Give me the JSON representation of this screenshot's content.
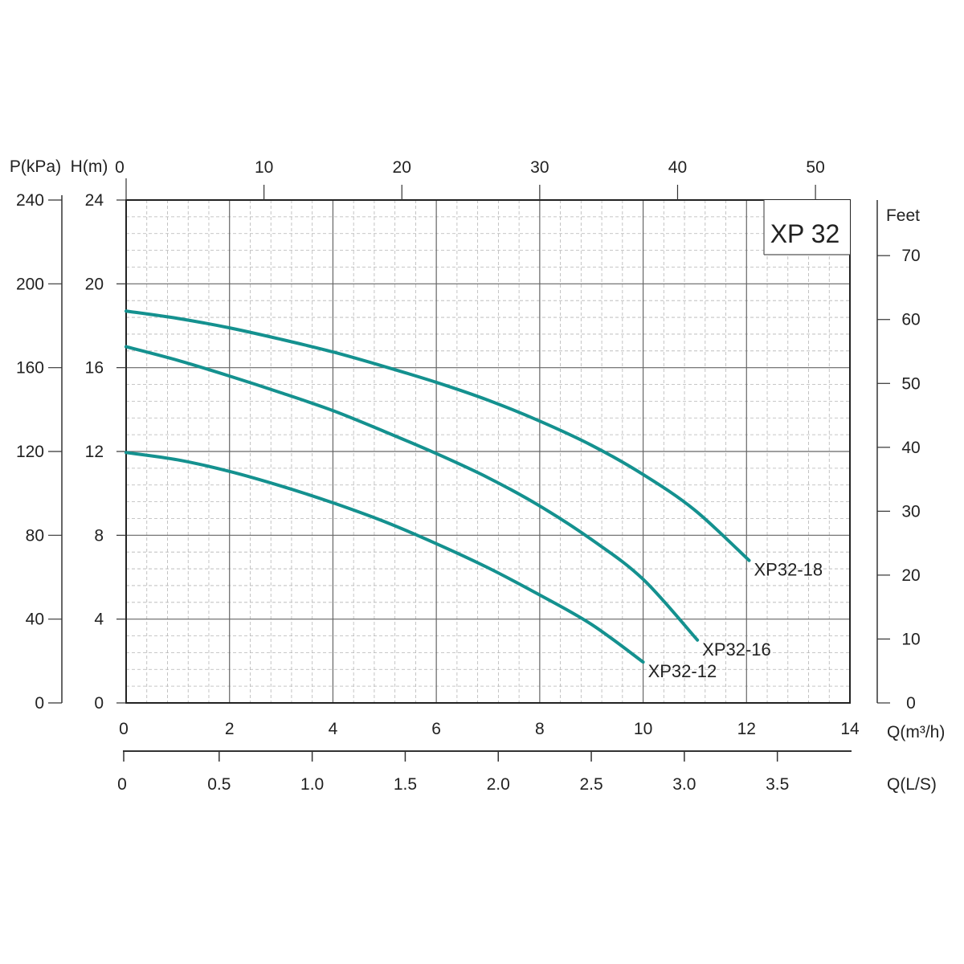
{
  "chart_data": {
    "type": "line",
    "title": "XP 32",
    "colors": {
      "curve": "#14918f",
      "axis": "#333333",
      "major_grid": "#666666",
      "minor_grid": "#b5b5b5"
    },
    "grid": true,
    "x": {
      "label": "Q(m³/h)",
      "range": [
        0,
        14
      ],
      "ticks": [
        0,
        2,
        4,
        6,
        8,
        10,
        12,
        14
      ]
    },
    "x_secondary_bottom": {
      "label": "Q(L/S)",
      "range": [
        0,
        3.89
      ],
      "ticks": [
        "0",
        "0.5",
        "1.0",
        "1.5",
        "2.0",
        "2.5",
        "3.0",
        "3.5"
      ]
    },
    "x_secondary_top": {
      "range": [
        0,
        52.5
      ],
      "ticks": [
        0,
        10,
        20,
        30,
        40,
        50
      ]
    },
    "y": {
      "label": "H(m)",
      "range": [
        0,
        24
      ],
      "ticks": [
        0,
        4,
        8,
        12,
        16,
        20,
        24
      ]
    },
    "y_secondary_left": {
      "label": "P(kPa)",
      "range": [
        0,
        240
      ],
      "ticks": [
        0,
        40,
        80,
        120,
        160,
        200,
        240
      ]
    },
    "y_secondary_right": {
      "label": "Feet",
      "range": [
        0,
        78.7
      ],
      "ticks": [
        0,
        10,
        20,
        30,
        40,
        50,
        60,
        70
      ]
    },
    "series": [
      {
        "name": "XP32-18",
        "x": [
          0,
          1,
          2,
          3,
          4,
          5,
          6,
          7,
          8,
          9,
          10,
          11,
          12.05
        ],
        "y": [
          18.7,
          18.35,
          17.9,
          17.35,
          16.75,
          16.05,
          15.3,
          14.45,
          13.45,
          12.3,
          10.9,
          9.2,
          6.8
        ]
      },
      {
        "name": "XP32-16",
        "x": [
          0,
          1,
          2,
          3,
          4,
          5,
          6,
          7,
          8,
          9,
          10,
          11.05
        ],
        "y": [
          17.0,
          16.35,
          15.6,
          14.8,
          13.95,
          12.95,
          11.9,
          10.75,
          9.4,
          7.8,
          5.9,
          3.0
        ]
      },
      {
        "name": "XP32-12",
        "x": [
          0,
          1,
          2,
          3,
          4,
          5,
          6,
          7,
          8,
          9,
          10
        ],
        "y": [
          11.95,
          11.6,
          11.05,
          10.35,
          9.55,
          8.65,
          7.6,
          6.45,
          5.15,
          3.75,
          1.95
        ]
      }
    ]
  }
}
